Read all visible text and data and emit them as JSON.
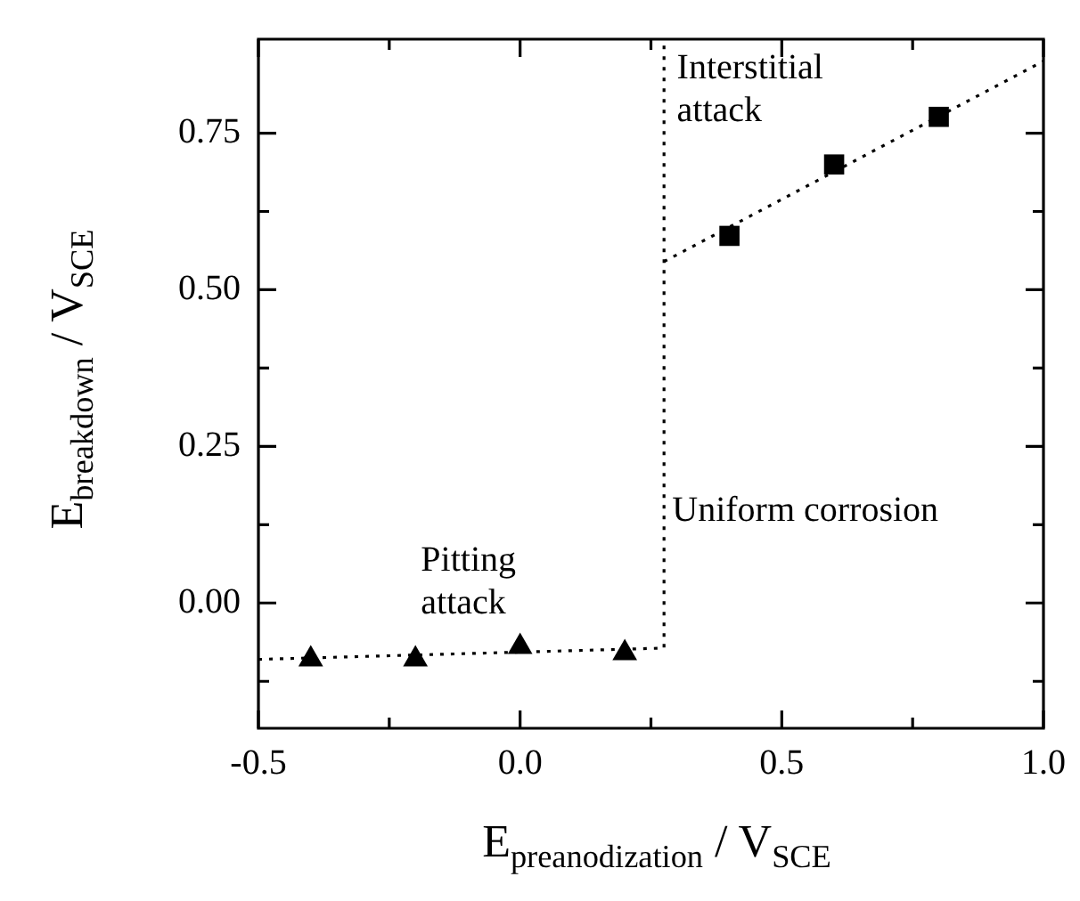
{
  "chart_data": {
    "type": "scatter",
    "xlabel": "E$_{preanodization}$ / V$_{SCE}$",
    "ylabel": "E$_{breakdown}$ / V$_{SCE}$",
    "xlim": [
      -0.5,
      1.0
    ],
    "xticks": [
      {
        "value": -0.5,
        "label": "-0.5"
      },
      {
        "value": -0.25,
        "label": null
      },
      {
        "value": 0,
        "label": "0.0"
      },
      {
        "value": 0.25,
        "label": null
      },
      {
        "value": 0.5,
        "label": "0.5"
      },
      {
        "value": 0.75,
        "label": null
      },
      {
        "value": 1.0,
        "label": "1.0"
      }
    ],
    "ylim": [
      -0.2,
      0.9
    ],
    "yticks": [
      {
        "value": -0.125,
        "label": null
      },
      {
        "value": 0,
        "label": "0.00"
      },
      {
        "value": 0.125,
        "label": null
      },
      {
        "value": 0.25,
        "label": "0.25"
      },
      {
        "value": 0.375,
        "label": null
      },
      {
        "value": 0.5,
        "label": "0.50"
      },
      {
        "value": 0.625,
        "label": null
      },
      {
        "value": 0.75,
        "label": "0.75"
      }
    ],
    "series": [
      {
        "type": "scatter",
        "color": "#000000",
        "marker": "triangle",
        "x": [
          -0.4,
          -0.2,
          0.0,
          0.2
        ],
        "values": [
          -0.09,
          -0.09,
          -0.07,
          -0.08
        ]
      },
      {
        "type": "scatter",
        "color": "#000000",
        "marker": "square",
        "x": [
          0.4,
          0.6,
          0.8
        ],
        "values": [
          0.586,
          0.7,
          0.776
        ]
      },
      {
        "type": "line",
        "color": "#000000",
        "marker": "none",
        "line_style": "dotted",
        "x": [
          -0.5,
          0.275,
          0.275
        ],
        "values": [
          -0.09,
          -0.072,
          0.9
        ]
      },
      {
        "type": "line",
        "color": "#000000",
        "marker": "none",
        "line_style": "dotted",
        "x": [
          0.275,
          1.0
        ],
        "values": [
          0.545,
          0.865
        ]
      }
    ],
    "annotations": [
      "Interstitial\nattack",
      "Uniform corrosion",
      "Pitting\nattack"
    ],
    "grid": false,
    "legend": false
  }
}
